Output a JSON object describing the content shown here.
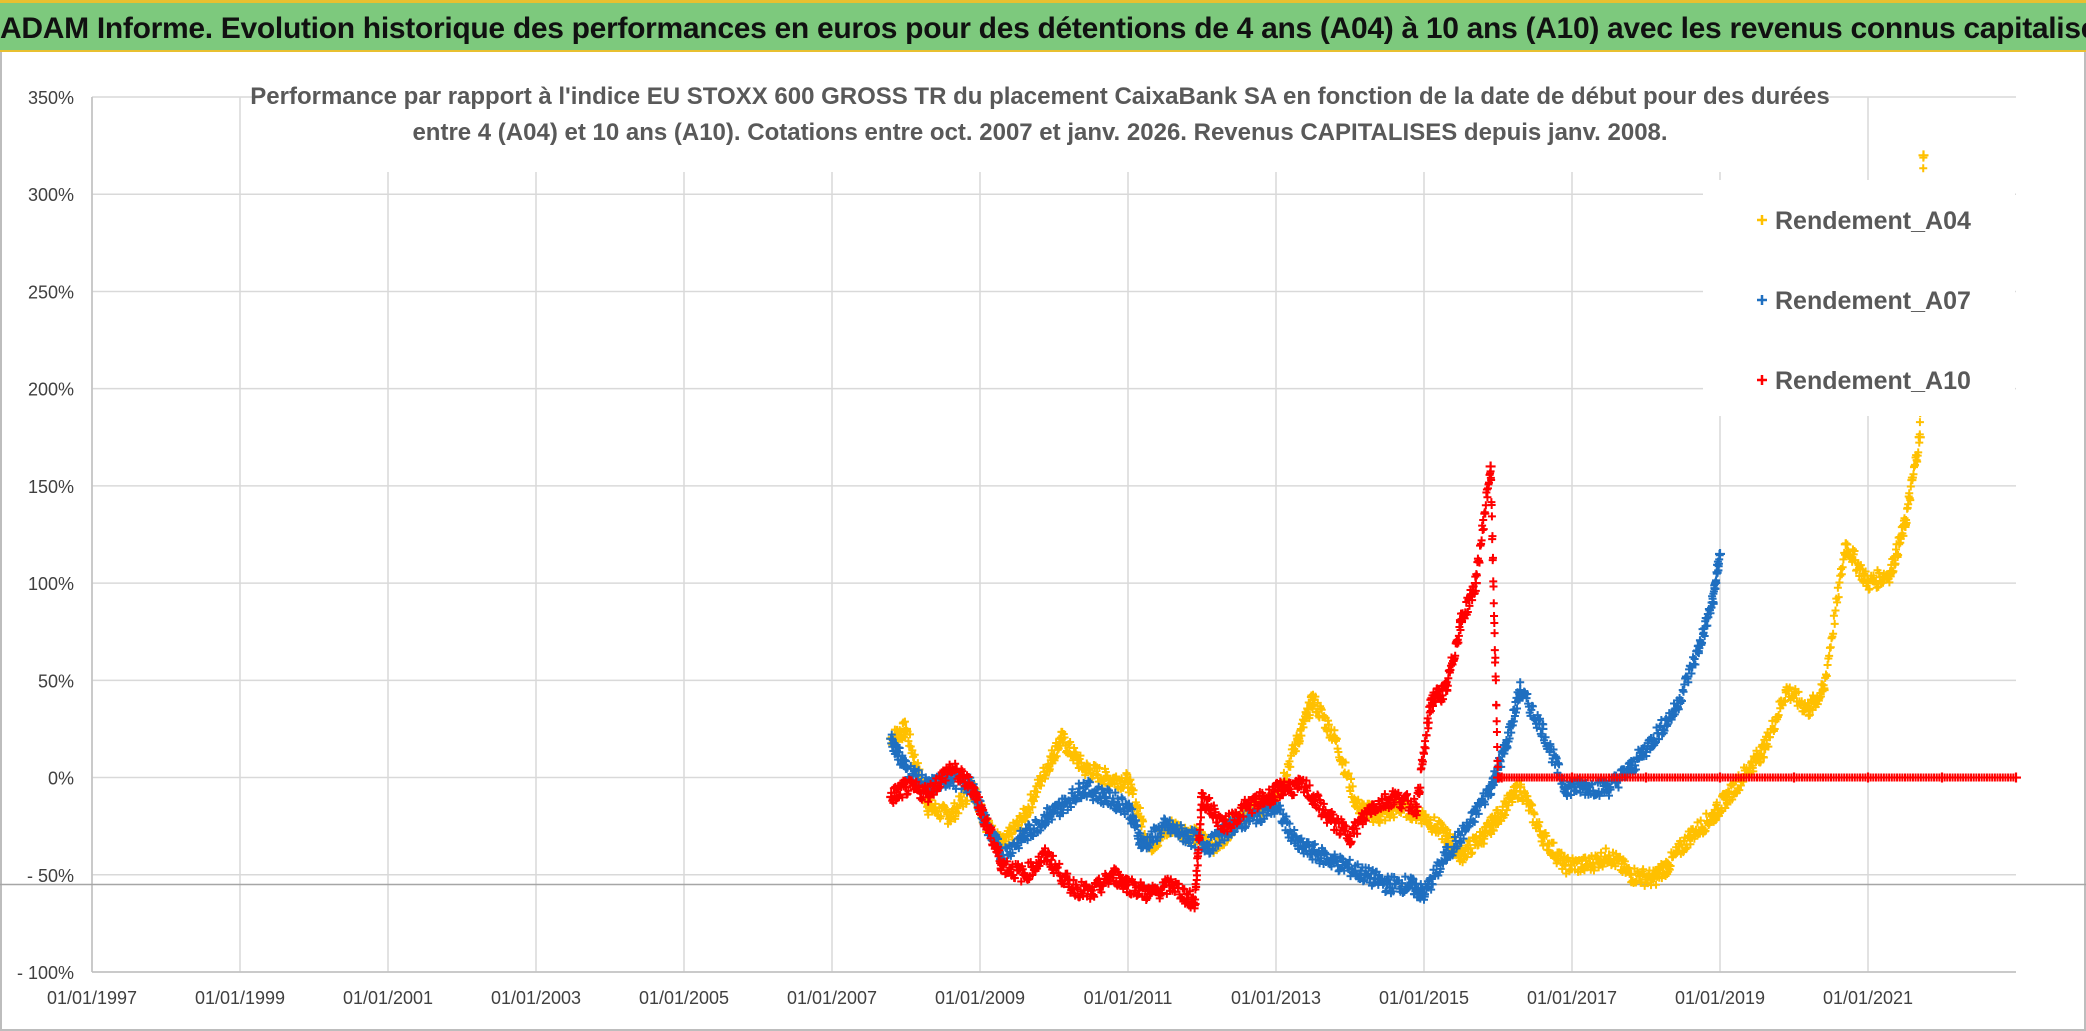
{
  "header": {
    "title": "ADAM Informe. Evolution historique des performances en euros pour des détentions de 4 ans (A04) à 10 ans (A10) avec les revenus connus capitalisés"
  },
  "colors": {
    "banner": "#7dc97d",
    "A04": "#ffc000",
    "A07": "#1f6fc0",
    "A10": "#ff0000",
    "grid": "#d9d9d9"
  },
  "chart_data": {
    "type": "scatter",
    "title_line1": "Performance par rapport à l'indice EU STOXX 600 GROSS TR  du placement CaixaBank SA en fonction de la date de début pour des durées",
    "title_line2": "entre 4 (A04) et 10 ans (A10). Cotations entre oct. 2007 et janv. 2026. Revenus CAPITALISES depuis janv. 2008.",
    "xlabel": "",
    "ylabel": "",
    "ylim": [
      -1.0,
      3.5
    ],
    "yticks": [
      "350%",
      "300%",
      "250%",
      "200%",
      "150%",
      "100%",
      "50%",
      "0%",
      "- 50%",
      "- 100%"
    ],
    "xlim": [
      1997.0,
      2023.0
    ],
    "xticks": [
      "01/01/1997",
      "01/01/1999",
      "01/01/2001",
      "01/01/2003",
      "01/01/2005",
      "01/01/2007",
      "01/01/2009",
      "01/01/2011",
      "01/01/2013",
      "01/01/2015",
      "01/01/2017",
      "01/01/2019",
      "01/01/2021"
    ],
    "grid": true,
    "legend_position": "top-right",
    "series": [
      {
        "name": "Rendement_A04",
        "color": "#ffc000",
        "marker": "+",
        "x": [
          2007.8,
          2008.0,
          2008.3,
          2008.6,
          2008.9,
          2009.1,
          2009.3,
          2009.6,
          2009.9,
          2010.1,
          2010.4,
          2010.7,
          2011.0,
          2011.3,
          2011.6,
          2011.9,
          2012.2,
          2012.5,
          2012.8,
          2013.0,
          2013.3,
          2013.5,
          2013.8,
          2014.1,
          2014.4,
          2014.7,
          2015.0,
          2015.3,
          2015.5,
          2015.8,
          2016.0,
          2016.3,
          2016.6,
          2016.9,
          2017.2,
          2017.5,
          2017.8,
          2018.1,
          2018.3,
          2018.6,
          2018.9,
          2019.1,
          2019.4,
          2019.6,
          2019.9,
          2020.2,
          2020.4,
          2020.7,
          2021.0,
          2021.3,
          2021.5,
          2021.7,
          2021.75
        ],
        "y": [
          0.2,
          0.25,
          -0.15,
          -0.2,
          -0.05,
          -0.25,
          -0.35,
          -0.2,
          0.05,
          0.2,
          0.05,
          0.0,
          -0.02,
          -0.35,
          -0.25,
          -0.3,
          -0.35,
          -0.2,
          -0.15,
          -0.1,
          0.2,
          0.4,
          0.2,
          -0.15,
          -0.2,
          -0.15,
          -0.2,
          -0.3,
          -0.4,
          -0.3,
          -0.2,
          -0.05,
          -0.3,
          -0.45,
          -0.45,
          -0.4,
          -0.5,
          -0.52,
          -0.45,
          -0.3,
          -0.2,
          -0.1,
          0.05,
          0.15,
          0.45,
          0.35,
          0.45,
          1.2,
          1.0,
          1.05,
          1.3,
          1.75,
          3.2
        ]
      },
      {
        "name": "Rendement_A07",
        "color": "#1f6fc0",
        "marker": "+",
        "x": [
          2007.8,
          2008.0,
          2008.3,
          2008.6,
          2008.9,
          2009.1,
          2009.3,
          2009.6,
          2009.9,
          2010.1,
          2010.4,
          2010.7,
          2011.0,
          2011.2,
          2011.5,
          2011.8,
          2012.1,
          2012.4,
          2012.7,
          2013.0,
          2013.3,
          2013.6,
          2013.9,
          2014.2,
          2014.5,
          2014.8,
          2015.0,
          2015.3,
          2015.6,
          2015.9,
          2016.1,
          2016.3,
          2016.6,
          2016.9,
          2017.2,
          2017.5,
          2017.8,
          2018.1,
          2018.4,
          2018.7,
          2018.9,
          2019.0
        ],
        "y": [
          0.2,
          0.05,
          -0.05,
          0.0,
          -0.05,
          -0.25,
          -0.4,
          -0.3,
          -0.2,
          -0.15,
          -0.05,
          -0.1,
          -0.15,
          -0.35,
          -0.25,
          -0.3,
          -0.35,
          -0.25,
          -0.2,
          -0.15,
          -0.35,
          -0.4,
          -0.45,
          -0.5,
          -0.55,
          -0.55,
          -0.6,
          -0.4,
          -0.25,
          -0.05,
          0.15,
          0.45,
          0.25,
          -0.05,
          -0.05,
          -0.05,
          0.05,
          0.2,
          0.35,
          0.65,
          0.9,
          1.15
        ]
      },
      {
        "name": "Rendement_A10",
        "color": "#ff0000",
        "marker": "+",
        "x": [
          2007.8,
          2008.0,
          2008.3,
          2008.6,
          2008.9,
          2009.1,
          2009.3,
          2009.6,
          2009.9,
          2010.2,
          2010.5,
          2010.8,
          2011.0,
          2011.3,
          2011.6,
          2011.9,
          2012.0,
          2012.3,
          2012.6,
          2012.9,
          2013.1,
          2013.4,
          2013.7,
          2014.0,
          2014.3,
          2014.6,
          2014.9,
          2015.1,
          2015.3,
          2015.5,
          2015.7,
          2015.9,
          2016.0,
          2016.05,
          2017.0,
          2018.0,
          2019.0,
          2020.0,
          2021.0,
          2022.0,
          2023.0
        ],
        "y": [
          -0.1,
          -0.05,
          -0.08,
          0.05,
          -0.05,
          -0.25,
          -0.45,
          -0.5,
          -0.4,
          -0.55,
          -0.6,
          -0.5,
          -0.55,
          -0.6,
          -0.55,
          -0.65,
          -0.1,
          -0.25,
          -0.15,
          -0.1,
          -0.05,
          -0.05,
          -0.2,
          -0.3,
          -0.15,
          -0.1,
          -0.15,
          0.4,
          0.45,
          0.8,
          1.0,
          1.6,
          0.0,
          0.0,
          0.0,
          0.0,
          0.0,
          0.0,
          0.0,
          0.0,
          0.0
        ]
      }
    ]
  }
}
